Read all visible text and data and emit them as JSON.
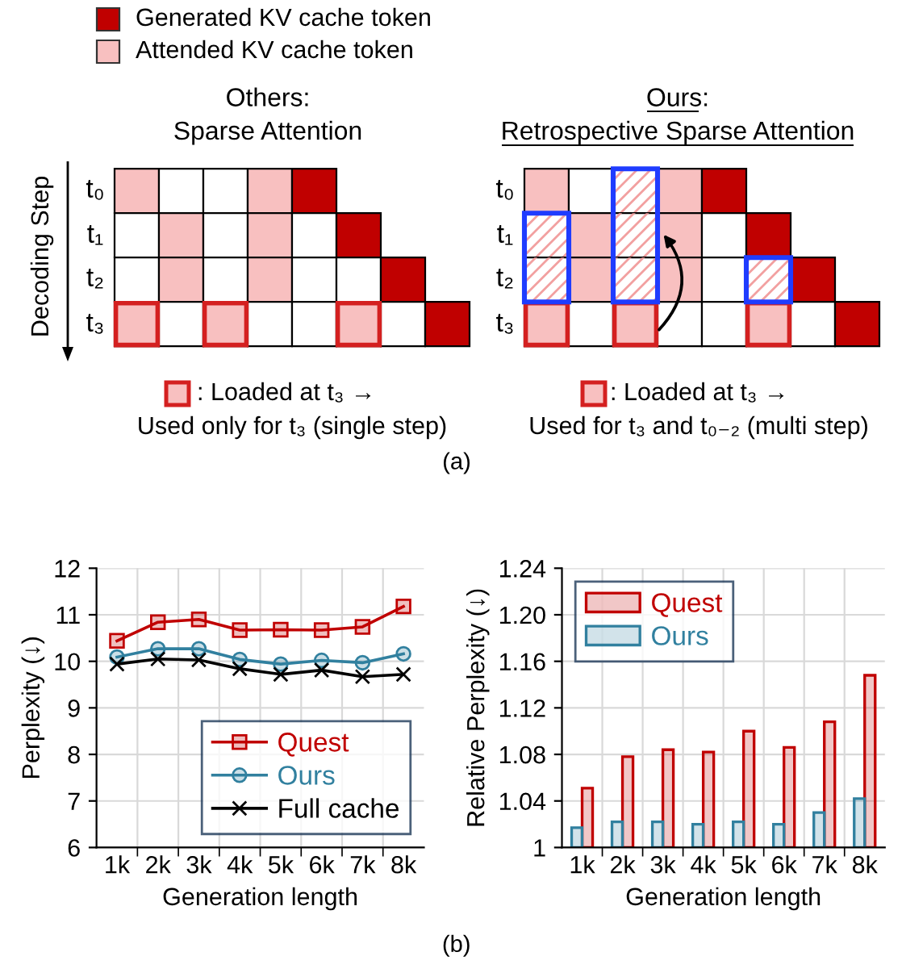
{
  "chart_data": [
    {
      "type": "other",
      "annotations": [
        "Generated KV cache token",
        "Attended KV cache token",
        "Others:\nSparse Attention",
        "Ours:\nRetrospective Sparse Attention",
        "Decoding Step",
        "t₀",
        "t₁",
        "t₂",
        "t₃",
        "t₀",
        "t₁",
        "t₂",
        "t₃",
        ": Loaded at t₃ →",
        "Used only for t₃ (single step)",
        ": Loaded at t₃ →",
        "Used for t₃ and t₀₋₂ (multi step)",
        "(a)"
      ]
    },
    {
      "type": "line",
      "categories": [
        "1k",
        "2k",
        "3k",
        "4k",
        "5k",
        "6k",
        "7k",
        "8k"
      ],
      "series": [
        {
          "name": "Quest",
          "color": "#c00000",
          "marker": "square",
          "values": [
            10.44,
            10.84,
            10.9,
            10.67,
            10.68,
            10.67,
            10.74,
            11.18
          ]
        },
        {
          "name": "Ours",
          "color": "#31809f",
          "marker": "circle",
          "values": [
            10.09,
            10.27,
            10.27,
            10.04,
            9.94,
            10.02,
            9.97,
            10.16
          ]
        },
        {
          "name": "Full cache",
          "color": "#000000",
          "marker": "cross",
          "values": [
            9.94,
            10.05,
            10.03,
            9.84,
            9.72,
            9.81,
            9.67,
            9.72
          ]
        }
      ],
      "ylim": [
        6,
        12
      ],
      "yticks": [
        6,
        7,
        8,
        9,
        10,
        11,
        12
      ],
      "xlabel": "Generation length",
      "ylabel": "Perplexity (↓)",
      "grid": true,
      "legend": "bottom right",
      "annotations": [
        "(b)"
      ]
    },
    {
      "type": "bar",
      "categories": [
        "1k",
        "2k",
        "3k",
        "4k",
        "5k",
        "6k",
        "7k",
        "8k"
      ],
      "series": [
        {
          "name": "Quest",
          "color": "#c00000",
          "values": [
            1.051,
            1.078,
            1.084,
            1.082,
            1.1,
            1.086,
            1.108,
            1.148
          ]
        },
        {
          "name": "Ours",
          "color": "#31809f",
          "values": [
            1.017,
            1.022,
            1.022,
            1.02,
            1.022,
            1.02,
            1.03,
            1.042
          ]
        }
      ],
      "ylim": [
        1,
        1.24
      ],
      "yticks": [
        1,
        1.04,
        1.08,
        1.12,
        1.16,
        {
          "value": 1.2,
          "label": "1.20"
        },
        1.24
      ],
      "xlabel": "Generation length",
      "ylabel": "Relative Perplexity (↓)",
      "grid": true,
      "legend": "top left"
    }
  ]
}
